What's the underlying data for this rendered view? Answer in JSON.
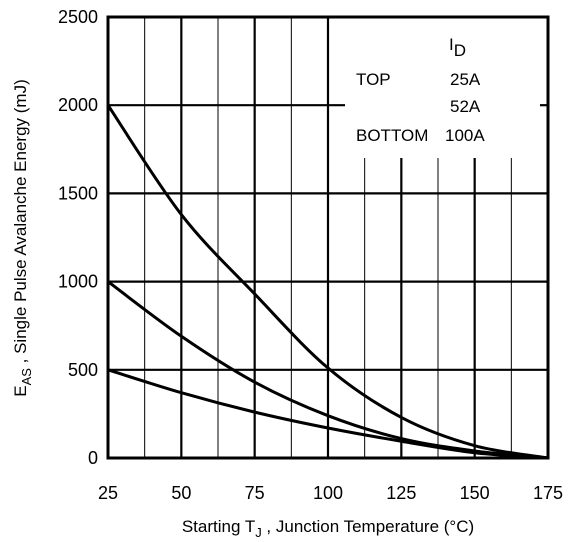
{
  "chart_data": {
    "type": "line",
    "xlabel": {
      "prefix": "Starting T",
      "sub": "J",
      "suffix": " , Junction Temperature (°C)"
    },
    "ylabel": {
      "prefix": "E",
      "sub": "AS",
      "suffix": " , Single Pulse Avalanche Energy (mJ)"
    },
    "xlim": [
      25,
      175
    ],
    "ylim": [
      0,
      2500
    ],
    "x_ticks": [
      "25",
      "50",
      "75",
      "100",
      "125",
      "150",
      "175"
    ],
    "y_ticks": [
      "0",
      "500",
      "1000",
      "1500",
      "2000",
      "2500"
    ],
    "grid": true,
    "legend": {
      "position": "top-right",
      "header": {
        "prefix": "I",
        "sub": "D"
      },
      "rows": [
        {
          "tag": "TOP",
          "value": "25A"
        },
        {
          "tag": "",
          "value": "52A"
        },
        {
          "tag": "BOTTOM",
          "value": "100A"
        }
      ]
    },
    "series": [
      {
        "name": "25A",
        "x": [
          25,
          50,
          75,
          100,
          125,
          150,
          175
        ],
        "y": [
          2000,
          1380,
          930,
          510,
          230,
          70,
          0
        ]
      },
      {
        "name": "52A",
        "x": [
          25,
          50,
          75,
          100,
          125,
          150,
          175
        ],
        "y": [
          1000,
          690,
          430,
          240,
          110,
          40,
          0
        ]
      },
      {
        "name": "100A",
        "x": [
          25,
          50,
          75,
          100,
          125,
          150,
          175
        ],
        "y": [
          500,
          370,
          260,
          170,
          95,
          30,
          0
        ]
      }
    ]
  }
}
